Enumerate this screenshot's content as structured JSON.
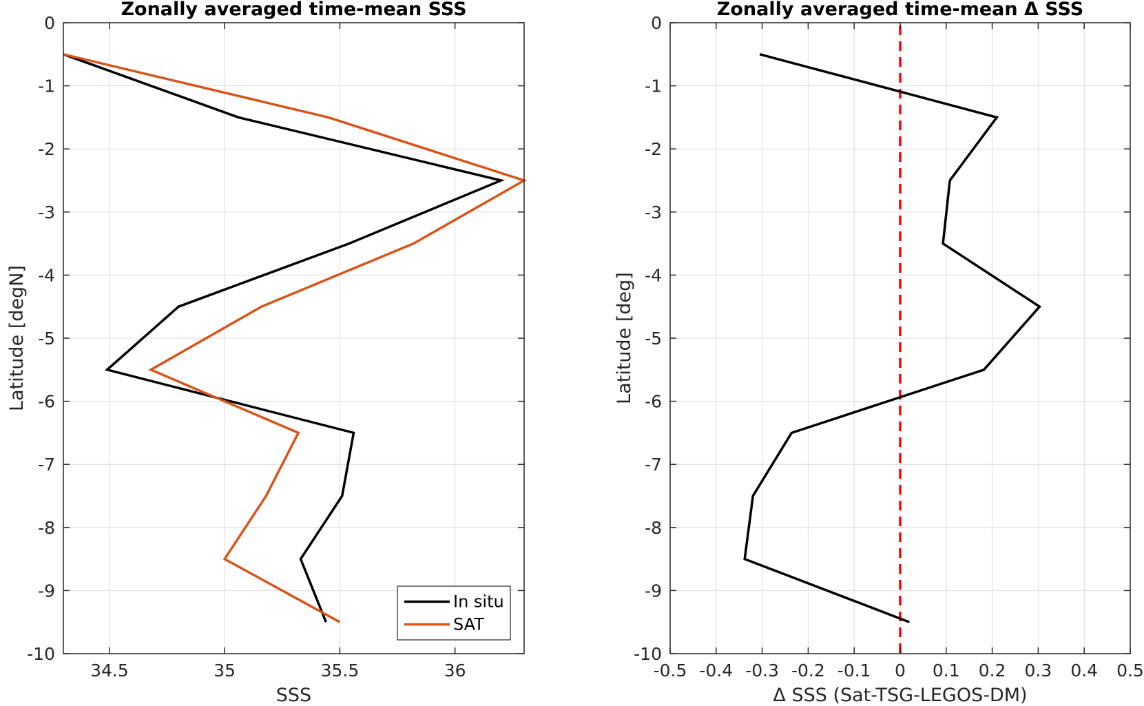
{
  "chart_data": [
    {
      "type": "line",
      "title": "Zonally averaged time-mean SSS",
      "xlabel": "SSS",
      "ylabel": "Latitude [degN]",
      "xlim": [
        34.3,
        36.3
      ],
      "ylim": [
        -10,
        0
      ],
      "xticks": [
        34.5,
        35,
        35.5,
        36
      ],
      "xtick_labels": [
        "34.5",
        "35",
        "35.5",
        "36"
      ],
      "yticks": [
        0,
        -1,
        -2,
        -3,
        -4,
        -5,
        -6,
        -7,
        -8,
        -9,
        -10
      ],
      "ytick_labels": [
        "0",
        "-1",
        "-2",
        "-3",
        "-4",
        "-5",
        "-6",
        "-7",
        "-8",
        "-9",
        "-10"
      ],
      "y_reversed": true,
      "grid": true,
      "legend_position": "bottom-right",
      "latitudes": [
        -0.5,
        -1.5,
        -2.5,
        -3.5,
        -4.5,
        -5.5,
        -6.5,
        -7.5,
        -8.5,
        -9.5
      ],
      "series": [
        {
          "name": "In situ",
          "color": "#000000",
          "values": [
            34.3,
            35.06,
            36.2,
            35.54,
            34.8,
            34.49,
            35.56,
            35.51,
            35.33,
            35.44
          ]
        },
        {
          "name": "SAT",
          "color": "#D95319",
          "values": [
            34.3,
            35.45,
            36.3,
            35.82,
            35.16,
            34.68,
            35.32,
            35.18,
            35.0,
            35.5
          ]
        }
      ]
    },
    {
      "type": "line",
      "title": "Zonally averaged time-mean Δ SSS",
      "xlabel": "Δ SSS (Sat-TSG-LEGOS-DM)",
      "ylabel": "Latitude [deg]",
      "xlim": [
        -0.5,
        0.5
      ],
      "ylim": [
        -10,
        0
      ],
      "xticks": [
        -0.5,
        -0.4,
        -0.3,
        -0.2,
        -0.1,
        0,
        0.1,
        0.2,
        0.3,
        0.4,
        0.5
      ],
      "xtick_labels": [
        "-0.5",
        "-0.4",
        "-0.3",
        "-0.2",
        "-0.1",
        "0",
        "0.1",
        "0.2",
        "0.3",
        "0.4",
        "0.5"
      ],
      "yticks": [
        0,
        -1,
        -2,
        -3,
        -4,
        -5,
        -6,
        -7,
        -8,
        -9,
        -10
      ],
      "ytick_labels": [
        "0",
        "-1",
        "-2",
        "-3",
        "-4",
        "-5",
        "-6",
        "-7",
        "-8",
        "-9",
        "-10"
      ],
      "y_reversed": true,
      "grid": true,
      "reference_line": {
        "x": 0,
        "color": "#FF0000",
        "style": "dashed"
      },
      "latitudes": [
        -0.5,
        -1.5,
        -2.5,
        -3.5,
        -4.5,
        -5.5,
        -6.5,
        -7.5,
        -8.5,
        -9.5
      ],
      "series": [
        {
          "color": "#000000",
          "values": [
            -0.305,
            0.21,
            0.108,
            0.093,
            0.303,
            0.182,
            -0.236,
            -0.32,
            -0.338,
            0.02
          ]
        }
      ]
    }
  ]
}
